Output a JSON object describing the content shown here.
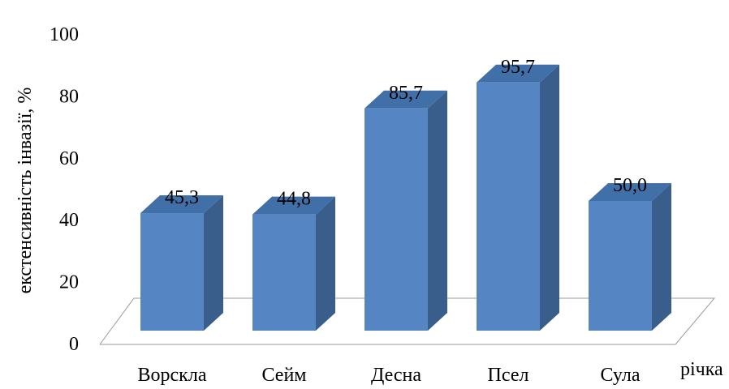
{
  "chart_data": {
    "type": "bar",
    "style": "3d-column",
    "categories": [
      "Ворскла",
      "Сейм",
      "Десна",
      "Псел",
      "Сула"
    ],
    "values": [
      45.3,
      44.8,
      85.7,
      95.7,
      50.0
    ],
    "data_labels": [
      "45,3",
      "44,8",
      "85,7",
      "95,7",
      "50,0"
    ],
    "title": "",
    "xlabel": "річка",
    "ylabel": "екстенсивність інвазії, %",
    "ylim": [
      0,
      100
    ],
    "yticks": [
      0,
      20,
      40,
      60,
      80,
      100
    ],
    "ytick_labels": [
      "0",
      "20",
      "40",
      "60",
      "80",
      "100"
    ],
    "grid": false,
    "legend": "none",
    "colors": {
      "bar_front": "#5585C2",
      "bar_side": "#3A5E8C",
      "bar_top": "#416FA8",
      "floor_line": "#9A9A9A"
    }
  }
}
